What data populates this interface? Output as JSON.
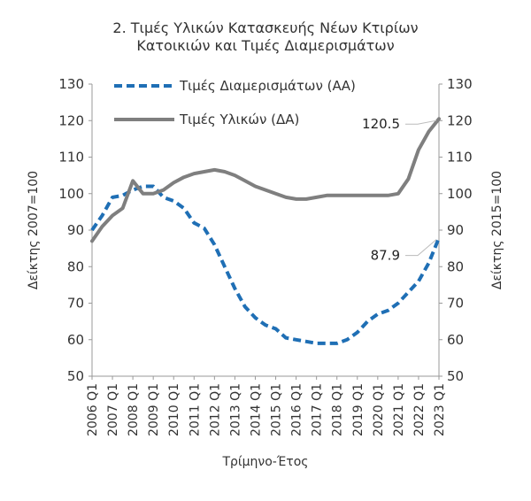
{
  "chart_data": {
    "type": "line",
    "title": "2. Τιμές Υλικών Κατασκευής Νέων Κτιρίων",
    "title_line2": "Κατοικιών και Τιμές Διαμερισμάτων",
    "xlabel": "Τρίμηνο-Έτος",
    "ylabel_left": "Δείκτης 2007=100",
    "ylabel_right": "Δείκτης 2015=100",
    "ylim": [
      50,
      130
    ],
    "yticks": [
      50,
      60,
      70,
      80,
      90,
      100,
      110,
      120,
      130
    ],
    "xticks": [
      "2006 Q1",
      "2007 Q1",
      "2008 Q1",
      "2009 Q1",
      "2010 Q1",
      "2011 Q1",
      "2012 Q1",
      "2013 Q1",
      "2014 Q1",
      "2015 Q1",
      "2016 Q1",
      "2017 Q1",
      "2018 Q1",
      "2019 Q1",
      "2020 Q1",
      "2021 Q1",
      "2022 Q1",
      "2023 Q1"
    ],
    "x_range": [
      "2006 Q1",
      "2023 Q1"
    ],
    "legend_position": "top-left",
    "grid": false,
    "series": [
      {
        "name": "Τιμές Διαμερισμάτων (ΑΑ)",
        "axis": "left",
        "style": "dashed",
        "color": "#1f6fb5",
        "end_label": "87.9",
        "x": [
          "2006 Q1",
          "2006 Q3",
          "2007 Q1",
          "2007 Q3",
          "2008 Q1",
          "2008 Q3",
          "2009 Q1",
          "2009 Q3",
          "2010 Q1",
          "2010 Q3",
          "2011 Q1",
          "2011 Q3",
          "2012 Q1",
          "2012 Q3",
          "2013 Q1",
          "2013 Q3",
          "2014 Q1",
          "2014 Q3",
          "2015 Q1",
          "2015 Q3",
          "2016 Q1",
          "2016 Q3",
          "2017 Q1",
          "2017 Q3",
          "2018 Q1",
          "2018 Q3",
          "2019 Q1",
          "2019 Q3",
          "2020 Q1",
          "2020 Q3",
          "2021 Q1",
          "2021 Q3",
          "2022 Q1",
          "2022 Q3",
          "2023 Q1"
        ],
        "values": [
          90,
          94,
          99,
          99.5,
          101,
          102,
          102,
          99,
          98,
          96,
          92,
          90.5,
          86,
          80,
          74,
          69,
          66,
          64,
          63,
          60.5,
          60,
          59.5,
          59,
          59,
          59,
          60,
          62,
          65,
          67,
          68,
          70,
          73,
          76,
          81,
          87.9
        ]
      },
      {
        "name": "Τιμές Υλικών (ΔΑ)",
        "axis": "right",
        "style": "solid",
        "color": "#7f7f7f",
        "end_label": "120.5",
        "x": [
          "2006 Q1",
          "2006 Q3",
          "2007 Q1",
          "2007 Q3",
          "2008 Q1",
          "2008 Q3",
          "2009 Q1",
          "2009 Q3",
          "2010 Q1",
          "2010 Q3",
          "2011 Q1",
          "2011 Q3",
          "2012 Q1",
          "2012 Q3",
          "2013 Q1",
          "2013 Q3",
          "2014 Q1",
          "2014 Q3",
          "2015 Q1",
          "2015 Q3",
          "2016 Q1",
          "2016 Q3",
          "2017 Q1",
          "2017 Q3",
          "2018 Q1",
          "2018 Q3",
          "2019 Q1",
          "2019 Q3",
          "2020 Q1",
          "2020 Q3",
          "2021 Q1",
          "2021 Q3",
          "2022 Q1",
          "2022 Q3",
          "2023 Q1"
        ],
        "values": [
          87,
          91,
          94,
          96,
          103.5,
          100,
          100,
          101,
          103,
          104.5,
          105.5,
          106,
          106.5,
          106,
          105,
          103.5,
          102,
          101,
          100,
          99,
          98.5,
          98.5,
          99,
          99.5,
          99.5,
          99.5,
          99.5,
          99.5,
          99.5,
          99.5,
          100,
          104,
          112,
          117,
          120.5
        ]
      }
    ]
  }
}
